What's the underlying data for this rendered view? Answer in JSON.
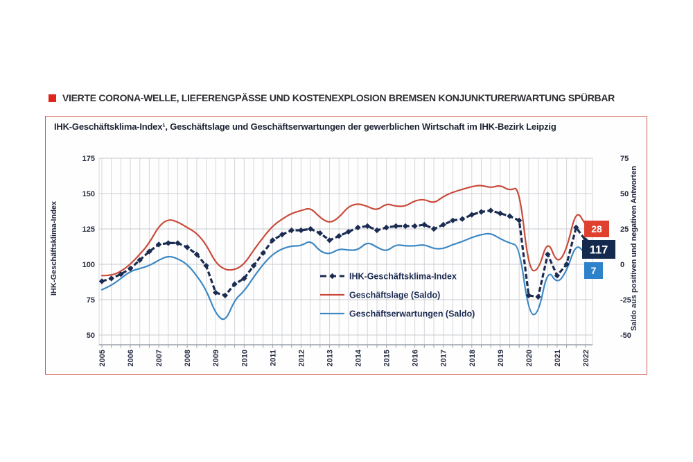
{
  "headline": {
    "bullet_color": "#e0261c",
    "text": "VIERTE CORONA-WELLE, LIEFERENGPÄSSE UND KOSTENEXPLOSION BREMSEN KONJUNKTURERWARTUNG SPÜRBAR"
  },
  "chart_data": {
    "type": "line",
    "title": "IHK-Geschäftsklima-Index¹, Geschäftslage und Geschäftserwartungen der gewerblichen Wirtschaft im IHK-Bezirk Leipzig",
    "ylabel_left": "IHK-Geschäftsklima-Index",
    "ylabel_right": "Saldo aus positiven und negativen Antworten",
    "ylim_left": [
      50,
      175
    ],
    "ylim_right": [
      -50,
      75
    ],
    "yticks_left": [
      50,
      75,
      100,
      125,
      150,
      175
    ],
    "yticks_right": [
      -50,
      -25,
      0,
      25,
      50,
      75
    ],
    "grid": true,
    "legend_position": "inside-center-bottom",
    "x_years": [
      "2005",
      "2006",
      "2007",
      "2008",
      "2009",
      "2010",
      "2011",
      "2012",
      "2013",
      "2014",
      "2015",
      "2016",
      "2017",
      "2018",
      "2019",
      "2020",
      "2021",
      "2022"
    ],
    "surveys_per_year": 3,
    "series": [
      {
        "name": "IHK-Geschäftsklima-Index",
        "axis": "left",
        "color": "#1b2c52",
        "style": "dashed-diamond",
        "end_value": 117,
        "values": [
          88,
          90,
          93,
          97,
          103,
          109,
          114,
          115,
          115,
          112,
          107,
          99,
          80,
          78,
          86,
          90,
          99,
          108,
          117,
          121,
          124,
          124,
          125,
          122,
          117,
          120,
          123,
          126,
          127,
          124,
          126,
          127,
          127,
          127,
          128,
          125,
          128,
          131,
          132,
          135,
          137,
          138,
          136,
          134,
          131,
          78,
          77,
          107,
          92,
          100,
          126,
          117
        ]
      },
      {
        "name": "Geschäftslage (Saldo)",
        "axis": "right",
        "color": "#c94a3a",
        "style": "solid",
        "end_value": 28,
        "values": [
          -8,
          -8,
          -5,
          0,
          7,
          15,
          27,
          32,
          30,
          26,
          22,
          14,
          1,
          -4,
          -4,
          0,
          10,
          19,
          27,
          32,
          36,
          38,
          40,
          33,
          29,
          33,
          41,
          43,
          41,
          38,
          43,
          41,
          41,
          45,
          46,
          43,
          48,
          51,
          53,
          55,
          56,
          54,
          56,
          52,
          55,
          -4,
          -5,
          18,
          0,
          10,
          39,
          28
        ]
      },
      {
        "name": "Geschäftserwartungen (Saldo)",
        "axis": "right",
        "color": "#3c88c4",
        "style": "solid",
        "end_value": 7,
        "values": [
          -18,
          -15,
          -10,
          -5,
          -3,
          -1,
          3,
          6,
          4,
          0,
          -8,
          -18,
          -35,
          -41,
          -25,
          -19,
          -9,
          0,
          7,
          11,
          13,
          13,
          17,
          9,
          7,
          11,
          10,
          10,
          16,
          12,
          9,
          14,
          13,
          13,
          14,
          11,
          11,
          14,
          16,
          19,
          21,
          22,
          18,
          15,
          13,
          -35,
          -36,
          -3,
          -14,
          -5,
          15,
          7
        ]
      }
    ],
    "end_labels": [
      {
        "text": "28",
        "bg": "#e0402e"
      },
      {
        "text": "117",
        "bg": "#14294e"
      },
      {
        "text": "7",
        "bg": "#2e82ca"
      }
    ]
  }
}
